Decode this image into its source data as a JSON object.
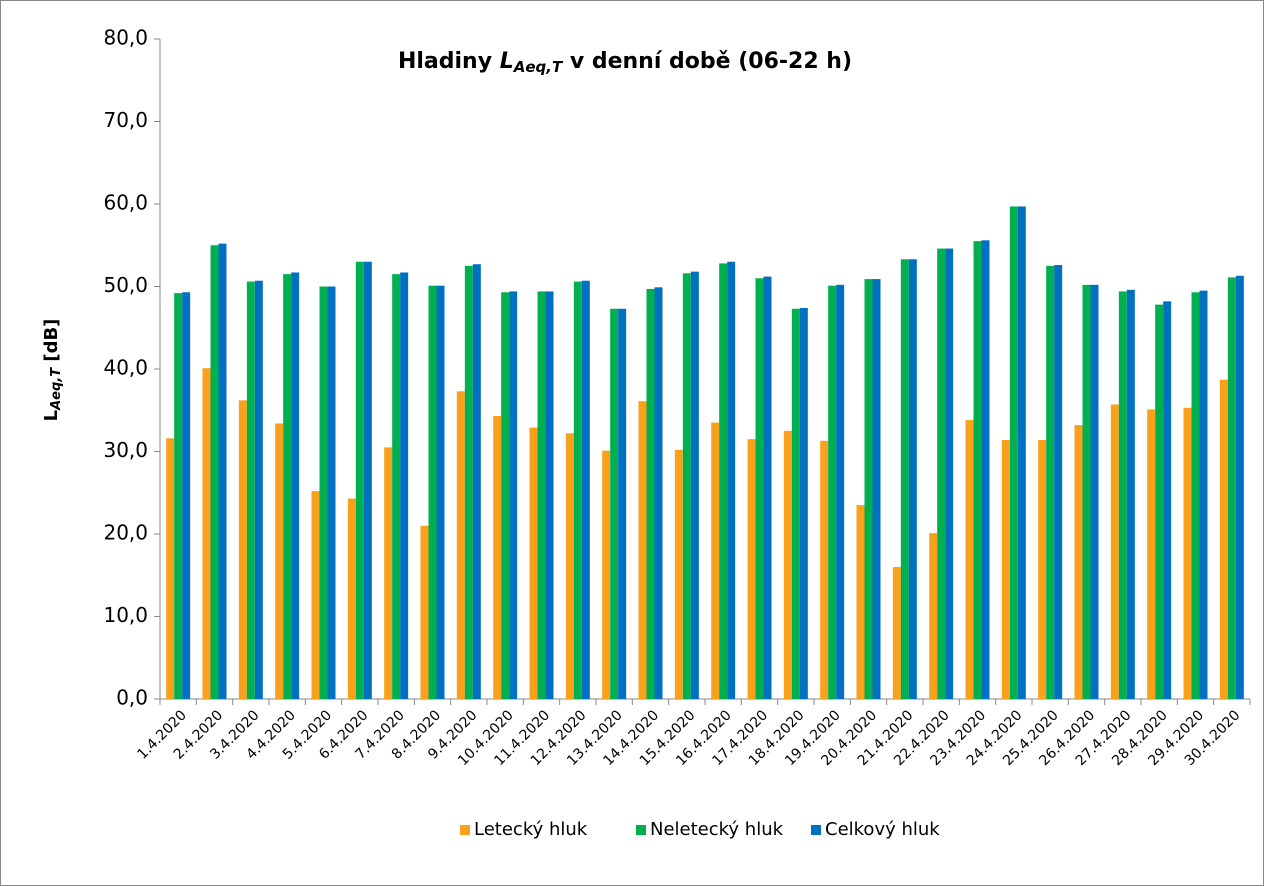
{
  "chart_data": {
    "type": "bar",
    "title": [
      "Hladiny ",
      "L",
      "Aeq,T",
      " v denní době (06-22 h)"
    ],
    "y_label": [
      "L",
      "Aeq,T",
      " [dB]"
    ],
    "categories": [
      "1.4.2020",
      "2.4.2020",
      "3.4.2020",
      "4.4.2020",
      "5.4.2020",
      "6.4.2020",
      "7.4.2020",
      "8.4.2020",
      "9.4.2020",
      "10.4.2020",
      "11.4.2020",
      "12.4.2020",
      "13.4.2020",
      "14.4.2020",
      "15.4.2020",
      "16.4.2020",
      "17.4.2020",
      "18.4.2020",
      "19.4.2020",
      "20.4.2020",
      "21.4.2020",
      "22.4.2020",
      "23.4.2020",
      "24.4.2020",
      "25.4.2020",
      "26.4.2020",
      "27.4.2020",
      "28.4.2020",
      "29.4.2020",
      "30.4.2020"
    ],
    "series": [
      {
        "name": "Letecký hluk",
        "color": "#f9a11b",
        "values": [
          31.6,
          40.1,
          36.2,
          33.4,
          25.2,
          24.3,
          30.5,
          21.0,
          37.3,
          34.3,
          32.9,
          32.2,
          30.1,
          36.1,
          30.2,
          33.5,
          31.5,
          32.5,
          31.3,
          23.5,
          16.0,
          20.1,
          33.8,
          31.4,
          31.4,
          33.2,
          35.7,
          35.1,
          35.3,
          38.7
        ]
      },
      {
        "name": "Neletecký hluk",
        "color": "#00b050",
        "values": [
          49.2,
          55.0,
          50.6,
          51.5,
          50.0,
          53.0,
          51.5,
          50.1,
          52.5,
          49.3,
          49.4,
          50.6,
          47.3,
          49.7,
          51.6,
          52.8,
          51.0,
          47.3,
          50.1,
          50.9,
          53.3,
          54.6,
          55.5,
          59.7,
          52.5,
          50.2,
          49.4,
          47.8,
          49.3,
          51.1
        ]
      },
      {
        "name": "Celkový hluk",
        "color": "#0070c0",
        "values": [
          49.3,
          55.2,
          50.7,
          51.7,
          50.0,
          53.0,
          51.7,
          50.1,
          52.7,
          49.4,
          49.4,
          50.7,
          47.3,
          49.9,
          51.8,
          53.0,
          51.2,
          47.4,
          50.2,
          50.9,
          53.3,
          54.6,
          55.6,
          59.7,
          52.6,
          50.2,
          49.6,
          48.2,
          49.5,
          51.3
        ]
      }
    ],
    "ylim": [
      0,
      80
    ],
    "yticks": [
      {
        "value": 0,
        "label": "0,0"
      },
      {
        "value": 10,
        "label": "10,0"
      },
      {
        "value": 20,
        "label": "20,0"
      },
      {
        "value": 30,
        "label": "30,0"
      },
      {
        "value": 40,
        "label": "40,0"
      },
      {
        "value": 50,
        "label": "50,0"
      },
      {
        "value": 60,
        "label": "60,0"
      },
      {
        "value": 70,
        "label": "70,0"
      },
      {
        "value": 80,
        "label": "80,0"
      }
    ],
    "grid": false,
    "legend": "bottom"
  }
}
